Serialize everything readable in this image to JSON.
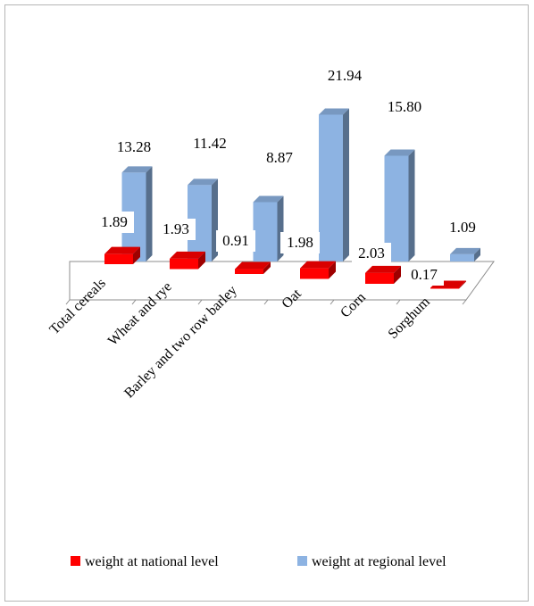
{
  "chart_data": {
    "type": "bar",
    "style": "3d-clustered-rows",
    "categories": [
      "Total cereals",
      "Wheat and rye",
      "Barley and two row barley",
      "Oat",
      "Corn",
      "Sorghum"
    ],
    "series": [
      {
        "name": "weight at national level",
        "values": [
          1.89,
          1.93,
          0.91,
          1.98,
          2.03,
          0.17
        ],
        "color": "#ff0000"
      },
      {
        "name": "weight at regional level",
        "values": [
          13.28,
          11.42,
          8.87,
          21.94,
          15.8,
          1.09
        ],
        "color": "#8db3e2"
      }
    ],
    "value_labels": {
      "national": [
        "1.89",
        "1.93",
        "0.91",
        "1.98",
        "2.03",
        "0.17"
      ],
      "regional": [
        "13.28",
        "11.42",
        "8.87",
        "21.94",
        "15.80",
        "1.09"
      ]
    },
    "title": "",
    "xlabel": "",
    "ylabel": "",
    "ylim": [
      0,
      24
    ],
    "grid": false,
    "legend": "bottom"
  }
}
